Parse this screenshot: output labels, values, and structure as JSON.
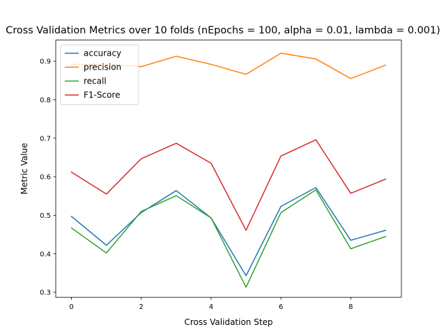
{
  "chart_data": {
    "type": "line",
    "title": "Cross Validation Metrics over 10 folds (nEpochs = 100, alpha = 0.01, lambda = 0.001)",
    "xlabel": "Cross Validation Step",
    "ylabel": "Metric Value",
    "xlim": [
      -0.45,
      9.45
    ],
    "ylim": [
      0.287,
      0.955
    ],
    "xticks": [
      0,
      2,
      4,
      6,
      8
    ],
    "yticks": [
      0.3,
      0.4,
      0.5,
      0.6,
      0.7,
      0.8,
      0.9
    ],
    "grid": false,
    "legend_position": "top-left",
    "x": [
      0,
      1,
      2,
      3,
      4,
      5,
      6,
      7,
      8,
      9
    ],
    "series": [
      {
        "name": "accuracy",
        "color": "#1f77b4",
        "values": [
          0.497,
          0.422,
          0.507,
          0.564,
          0.493,
          0.343,
          0.523,
          0.572,
          0.435,
          0.461
        ]
      },
      {
        "name": "precision",
        "color": "#ff7f0e",
        "values": [
          0.892,
          0.892,
          0.886,
          0.913,
          0.892,
          0.866,
          0.921,
          0.906,
          0.855,
          0.89
        ]
      },
      {
        "name": "recall",
        "color": "#2ca02c",
        "values": [
          0.467,
          0.402,
          0.51,
          0.551,
          0.493,
          0.313,
          0.507,
          0.566,
          0.413,
          0.445
        ]
      },
      {
        "name": "F1-Score",
        "color": "#d62728",
        "values": [
          0.612,
          0.555,
          0.647,
          0.687,
          0.635,
          0.461,
          0.654,
          0.696,
          0.557,
          0.594
        ]
      }
    ]
  }
}
